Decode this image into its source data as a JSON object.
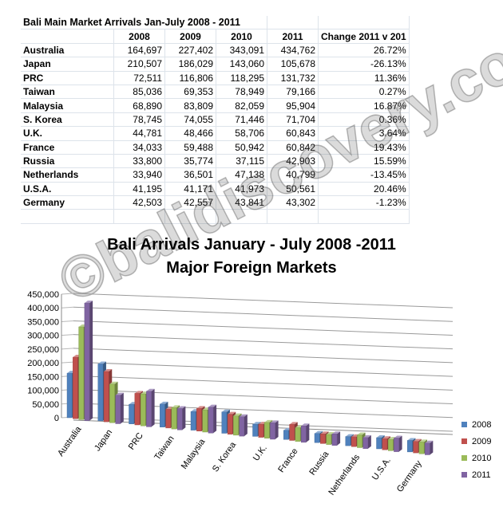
{
  "table": {
    "title": "Bali Main Market Arrivals Jan-July 2008 - 2011",
    "headers": [
      "2008",
      "2009",
      "2010",
      "2011",
      "Change 2011 v 201"
    ],
    "rows": [
      [
        "Australia",
        "164,697",
        "227,402",
        "343,091",
        "434,762",
        "26.72%"
      ],
      [
        "Japan",
        "210,507",
        "186,029",
        "143,060",
        "105,678",
        "-26.13%"
      ],
      [
        "PRC",
        "72,511",
        "116,806",
        "118,295",
        "131,732",
        "11.36%"
      ],
      [
        "Taiwan",
        "85,036",
        "69,353",
        "78,949",
        "79,166",
        "0.27%"
      ],
      [
        "Malaysia",
        "68,890",
        "83,809",
        "82,059",
        "95,904",
        "16.87%"
      ],
      [
        "S. Korea",
        "78,745",
        "74,055",
        "71,446",
        "71,704",
        "0.36%"
      ],
      [
        "U.K.",
        "44,781",
        "48,466",
        "58,706",
        "60,843",
        "3.64%"
      ],
      [
        "France",
        "34,033",
        "59,488",
        "50,942",
        "60,842",
        "19.43%"
      ],
      [
        "Russia",
        "33,800",
        "35,774",
        "37,115",
        "42,903",
        "15.59%"
      ],
      [
        "Netherlands",
        "33,940",
        "36,501",
        "47,138",
        "40,799",
        "-13.45%"
      ],
      [
        "U.S.A.",
        "41,195",
        "41,171",
        "41,973",
        "50,561",
        "20.46%"
      ],
      [
        "Germany",
        "42,503",
        "42,557",
        "43,841",
        "43,302",
        "-1.23%"
      ]
    ]
  },
  "watermark": "©balidiscovery.com",
  "chart_data": {
    "type": "bar",
    "title": "Bali Arrivals January - July 2008 -2011",
    "subtitle": "Major Foreign Markets",
    "categories": [
      "Australia",
      "Japan",
      "PRC",
      "Taiwan",
      "Malaysia",
      "S. Korea",
      "U.K.",
      "France",
      "Russia",
      "Netherlands",
      "U.S.A.",
      "Germany"
    ],
    "series": [
      {
        "name": "2008",
        "color": "#4f81bd",
        "values": [
          164697,
          210507,
          72511,
          85036,
          68890,
          78745,
          44781,
          34033,
          33800,
          33940,
          41195,
          42503
        ]
      },
      {
        "name": "2009",
        "color": "#c0504d",
        "values": [
          227402,
          186029,
          116806,
          69353,
          83809,
          74055,
          48466,
          59488,
          35774,
          36501,
          41171,
          42557
        ]
      },
      {
        "name": "2010",
        "color": "#9bbb59",
        "values": [
          343091,
          143060,
          118295,
          78949,
          82059,
          71446,
          58706,
          50942,
          37115,
          47138,
          41973,
          43841
        ]
      },
      {
        "name": "2011",
        "color": "#8064a2",
        "values": [
          434762,
          105678,
          131732,
          79166,
          95904,
          71704,
          60843,
          60842,
          42903,
          40799,
          50561,
          43302
        ]
      }
    ],
    "y_ticks": [
      "0",
      "50,000",
      "100,000",
      "150,000",
      "200,000",
      "250,000",
      "300,000",
      "350,000",
      "400,000",
      "450,000"
    ],
    "ylim": [
      0,
      450000
    ],
    "grid": true,
    "legend_position": "right"
  }
}
